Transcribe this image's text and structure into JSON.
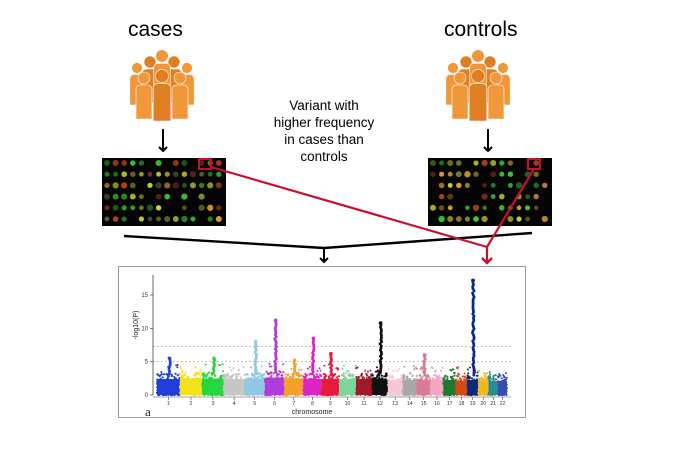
{
  "groups": {
    "cases": {
      "label": "cases"
    },
    "controls": {
      "label": "controls"
    }
  },
  "annotation": {
    "lines": [
      "Variant with",
      "higher frequency",
      "in cases than",
      "controls"
    ]
  },
  "colors": {
    "people": "#f0973a",
    "people_dark": "#e07e22",
    "highlight": "#c8102e",
    "arrow": "#000000",
    "array_bg": "#050505"
  },
  "panel_label": "a",
  "chart_data": {
    "type": "scatter",
    "subtype": "manhattan",
    "xlabel": "chromosome",
    "ylabel": "-log10(P)",
    "ylim": [
      0,
      18
    ],
    "yticks": [
      0,
      5,
      10,
      15
    ],
    "threshold_lines": [
      5,
      7.3
    ],
    "categories": [
      "1",
      "2",
      "3",
      "4",
      "5",
      "6",
      "7",
      "8",
      "9",
      "10",
      "11",
      "12",
      "13",
      "14",
      "15",
      "16",
      "17",
      "18",
      "19",
      "20",
      "21",
      "22"
    ],
    "series": [
      {
        "chrom": "1",
        "color": "#1f3fd8",
        "baseline_max": 3.2,
        "peak": 5.5
      },
      {
        "chrom": "2",
        "color": "#f4e218",
        "baseline_max": 3.4,
        "peak": 4.6
      },
      {
        "chrom": "3",
        "color": "#25d63c",
        "baseline_max": 3.3,
        "peak": 5.5
      },
      {
        "chrom": "4",
        "color": "#c6c6c6",
        "baseline_max": 3.2,
        "peak": 4.4
      },
      {
        "chrom": "5",
        "color": "#8fc9e3",
        "baseline_max": 3.3,
        "peak": 8.0
      },
      {
        "chrom": "6",
        "color": "#b23cd9",
        "baseline_max": 3.5,
        "peak": 11.2
      },
      {
        "chrom": "7",
        "color": "#f2a12a",
        "baseline_max": 3.3,
        "peak": 5.2
      },
      {
        "chrom": "8",
        "color": "#e021c6",
        "baseline_max": 3.2,
        "peak": 8.5
      },
      {
        "chrom": "9",
        "color": "#e51c3c",
        "baseline_max": 3.2,
        "peak": 6.2
      },
      {
        "chrom": "10",
        "color": "#7fd49a",
        "baseline_max": 3.2,
        "peak": 4.6
      },
      {
        "chrom": "11",
        "color": "#a11a2a",
        "baseline_max": 3.2,
        "peak": 4.3
      },
      {
        "chrom": "12",
        "color": "#111111",
        "baseline_max": 3.3,
        "peak": 10.8
      },
      {
        "chrom": "13",
        "color": "#f6c7d4",
        "baseline_max": 3.0,
        "peak": 4.0
      },
      {
        "chrom": "14",
        "color": "#a8a8a8",
        "baseline_max": 3.0,
        "peak": 4.4
      },
      {
        "chrom": "15",
        "color": "#d77c95",
        "baseline_max": 3.0,
        "peak": 6.0
      },
      {
        "chrom": "16",
        "color": "#f5a4c2",
        "baseline_max": 3.0,
        "peak": 4.2
      },
      {
        "chrom": "17",
        "color": "#1e7a33",
        "baseline_max": 3.0,
        "peak": 4.0
      },
      {
        "chrom": "18",
        "color": "#d24a14",
        "baseline_max": 2.9,
        "peak": 4.4
      },
      {
        "chrom": "19",
        "color": "#0d2a7a",
        "baseline_max": 3.0,
        "peak": 17.2
      },
      {
        "chrom": "20",
        "color": "#f3b820",
        "baseline_max": 2.9,
        "peak": 3.8
      },
      {
        "chrom": "21",
        "color": "#2b8e8e",
        "baseline_max": 2.8,
        "peak": 3.6
      },
      {
        "chrom": "22",
        "color": "#3a4bb0",
        "baseline_max": 2.8,
        "peak": 3.5
      }
    ]
  }
}
